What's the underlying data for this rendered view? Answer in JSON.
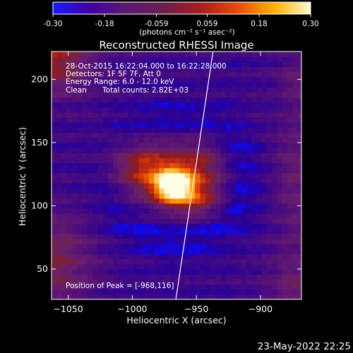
{
  "colorbar": {
    "ticks": [
      "-0.30",
      "-0.18",
      "-0.059",
      "0.059",
      "0.18",
      "0.30"
    ],
    "tick_values": [
      -0.3,
      -0.18,
      -0.059,
      0.059,
      0.18,
      0.3
    ],
    "range": [
      -0.3,
      0.3
    ],
    "units": "(photons cm⁻² s⁻¹ asec⁻²)",
    "colors": [
      "#1a1aff",
      "#3f00a0",
      "#5a1b6f",
      "#6b1f50",
      "#a81d1d",
      "#e8480a",
      "#ffb000",
      "#fffbd0"
    ]
  },
  "title": "Reconstructed RHESSI Image",
  "annotations": {
    "time": "28-Oct-2015 16:22:04.000 to 16:22:28.000",
    "detectors": "Detectors: 1F 5F 7F, Att 0",
    "energy": "Energy Range: 6.0 - 12.0 keV",
    "clean": "Clean",
    "counts": "Total counts: 2.82E+03",
    "peak": "Position of Peak = [-968,116]"
  },
  "timestamp": "23-May-2022 22:25",
  "chart_data": {
    "type": "heatmap",
    "title": "Reconstructed RHESSI Image",
    "xlabel": "Heliocentric X (arcsec)",
    "ylabel": "Heliocentric Y (arcsec)",
    "xlim": [
      -1063,
      -868
    ],
    "ylim": [
      26,
      222
    ],
    "x_ticks": [
      -1050,
      -1000,
      -950,
      -900
    ],
    "y_ticks": [
      50,
      100,
      150,
      200
    ],
    "x_tick_labels": [
      "−1050",
      "−1000",
      "−950",
      "−900"
    ],
    "y_tick_labels": [
      "50",
      "100",
      "150",
      "200"
    ],
    "peak": [
      -968,
      116
    ],
    "grid_spacing_arcsec": 4,
    "limb_line": [
      [
        -966,
        26
      ],
      [
        -937,
        222
      ]
    ]
  }
}
